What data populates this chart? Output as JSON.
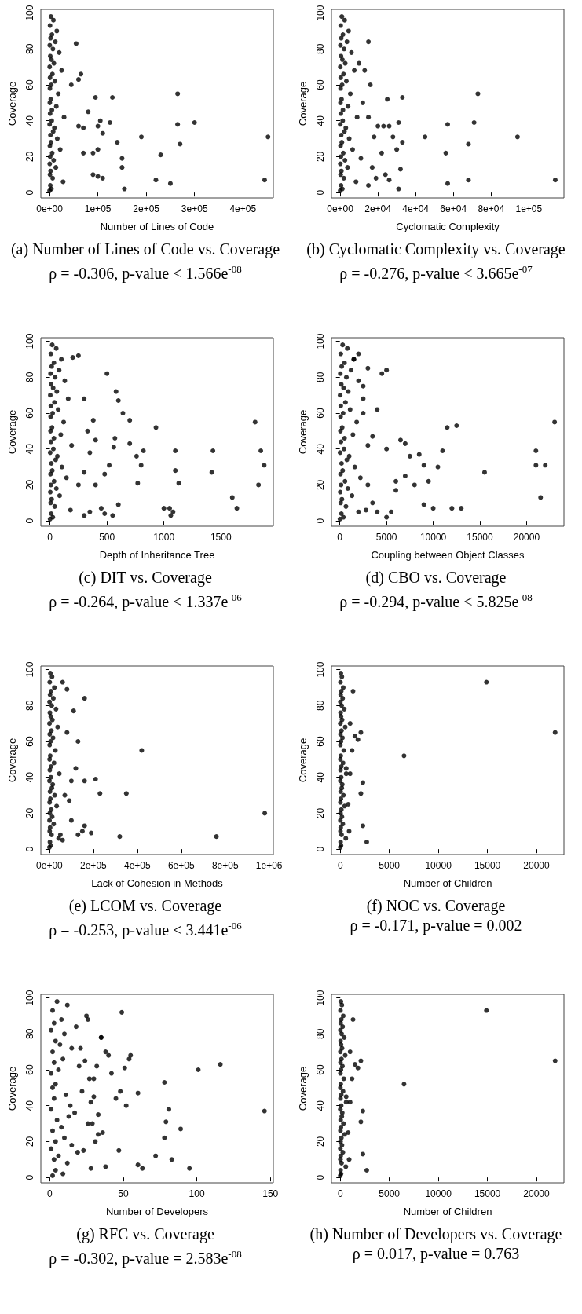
{
  "chart_data": [
    {
      "type": "scatter",
      "title": "(a) Number of Lines of Code vs. Coverage",
      "subtitle": "ρ = -0.306, p-value < 1.566e$^{-08}$",
      "xlabel": "Number of Lines of Code",
      "ylabel": "Coverage",
      "color": "#000000",
      "marker": "circle",
      "xlim": [
        -18000,
        463000
      ],
      "xticks": [
        {
          "value": 0,
          "label": "0e+00"
        },
        {
          "value": 100000,
          "label": "1e+05"
        },
        {
          "value": 200000,
          "label": "2e+05"
        },
        {
          "value": 300000,
          "label": "3e+05"
        },
        {
          "value": 400000,
          "label": "4e+05"
        }
      ],
      "ylim": [
        -3,
        102
      ],
      "yticks": [
        0,
        20,
        40,
        60,
        80,
        100
      ],
      "x": [
        3000,
        8000,
        1000,
        15000,
        5000,
        2000,
        12000,
        500,
        7000,
        20000,
        1500,
        4000,
        9000,
        300,
        25000,
        6000,
        1000,
        11000,
        3500,
        800,
        18000,
        2500,
        600,
        14000,
        5000,
        1200,
        30000,
        4500,
        200,
        10000,
        7500,
        1800,
        16000,
        3000,
        700,
        22000,
        5500,
        1300,
        8500,
        400,
        13000,
        2200,
        900,
        6500,
        28000,
        1600,
        3800,
        100,
        55000,
        60000,
        65000,
        45000,
        60000,
        70000,
        95000,
        105000,
        100000,
        110000,
        90000,
        100000,
        125000,
        130000,
        140000,
        150000,
        155000,
        150000,
        190000,
        220000,
        230000,
        250000,
        265000,
        265000,
        270000,
        300000,
        445000,
        452000,
        90000,
        100000,
        110000,
        70000,
        80000
      ],
      "values": [
        98,
        96,
        93,
        90,
        88,
        86,
        84,
        82,
        80,
        78,
        76,
        74,
        72,
        70,
        68,
        66,
        64,
        62,
        60,
        58,
        55,
        52,
        50,
        48,
        46,
        44,
        42,
        40,
        38,
        36,
        34,
        32,
        30,
        28,
        26,
        24,
        22,
        20,
        18,
        16,
        14,
        12,
        10,
        8,
        6,
        4,
        2,
        1,
        83,
        63,
        66,
        60,
        37,
        36,
        53,
        40,
        37,
        33,
        22,
        24,
        39,
        53,
        28,
        19,
        2,
        14,
        31,
        7,
        21,
        5,
        55,
        38,
        27,
        39,
        7,
        31,
        10,
        9,
        8,
        22,
        45
      ]
    },
    {
      "type": "scatter",
      "title": "(b) Cyclomatic Complexity vs. Coverage",
      "subtitle": "ρ = -0.276, p-value < 3.665e$^{-07}$",
      "xlabel": "Cyclomatic Complexity",
      "ylabel": "Coverage",
      "color": "#000000",
      "marker": "circle",
      "xlim": [
        -4600,
        118600
      ],
      "xticks": [
        {
          "value": 0,
          "label": "0e+00"
        },
        {
          "value": 20000,
          "label": "2e+04"
        },
        {
          "value": 40000,
          "label": "4e+04"
        },
        {
          "value": 60000,
          "label": "6e+04"
        },
        {
          "value": 80000,
          "label": "8e+04"
        },
        {
          "value": 100000,
          "label": "1e+05"
        }
      ],
      "ylim": [
        -3,
        102
      ],
      "yticks": [
        0,
        20,
        40,
        60,
        80,
        100
      ],
      "x": [
        900,
        2400,
        300,
        4500,
        1500,
        600,
        3600,
        150,
        2100,
        6000,
        450,
        1200,
        2700,
        90,
        7500,
        1800,
        300,
        3300,
        1050,
        240,
        5400,
        750,
        180,
        4200,
        1500,
        360,
        9000,
        1350,
        60,
        3000,
        2250,
        540,
        4800,
        900,
        210,
        6600,
        1650,
        390,
        2550,
        120,
        3900,
        660,
        270,
        1950,
        8400,
        480,
        1140,
        30,
        114000,
        94000,
        73000,
        71000,
        68000,
        57000,
        56000,
        57000,
        68000,
        45000,
        33000,
        33000,
        31000,
        32000,
        31000,
        30000,
        28000,
        26000,
        25000,
        23000,
        22000,
        20000,
        19000,
        24000,
        26000,
        15000,
        13000,
        10000,
        16000,
        12000,
        15000,
        11000,
        18000,
        15000,
        17000
      ],
      "values": [
        98,
        96,
        93,
        90,
        88,
        86,
        84,
        82,
        80,
        78,
        76,
        74,
        72,
        70,
        68,
        66,
        64,
        62,
        60,
        58,
        55,
        52,
        50,
        48,
        46,
        44,
        42,
        40,
        38,
        36,
        34,
        32,
        30,
        28,
        26,
        24,
        22,
        20,
        18,
        16,
        14,
        12,
        10,
        8,
        6,
        4,
        2,
        1,
        7,
        31,
        55,
        39,
        27,
        38,
        22,
        5,
        7,
        31,
        53,
        28,
        39,
        13,
        2,
        24,
        31,
        37,
        52,
        37,
        22,
        37,
        8,
        10,
        7,
        84,
        68,
        72,
        60,
        50,
        42,
        19,
        31,
        4,
        14
      ]
    },
    {
      "type": "scatter",
      "title": "(c) DIT vs. Coverage",
      "subtitle": "ρ = -0.264, p-value < 1.337e$^{-06}$",
      "xlabel": "Depth of Inheritance Tree",
      "ylabel": "Coverage",
      "color": "#000000",
      "marker": "circle",
      "xlim": [
        -80,
        1960
      ],
      "xticks": [
        0,
        500,
        1000,
        1500
      ],
      "ylim": [
        -3,
        102
      ],
      "yticks": [
        0,
        20,
        40,
        60,
        80,
        100
      ],
      "x": [
        20,
        55,
        8,
        100,
        35,
        15,
        80,
        5,
        45,
        130,
        10,
        28,
        60,
        3,
        160,
        40,
        8,
        72,
        24,
        6,
        120,
        18,
        5,
        95,
        35,
        9,
        190,
        30,
        2,
        65,
        50,
        12,
        105,
        20,
        5,
        145,
        36,
        9,
        56,
        3,
        85,
        15,
        6,
        42,
        180,
        11,
        25,
        1,
        1800,
        1850,
        1880,
        1830,
        1600,
        1640,
        1430,
        1420,
        1100,
        1100,
        1130,
        1000,
        1050,
        1080,
        1060,
        930,
        820,
        800,
        760,
        770,
        700,
        700,
        640,
        580,
        600,
        570,
        500,
        560,
        520,
        480,
        450,
        480,
        600,
        550,
        400,
        380,
        300,
        330,
        250,
        200,
        350,
        300,
        250,
        400,
        350,
        300
      ],
      "values": [
        98,
        96,
        93,
        90,
        88,
        86,
        84,
        82,
        80,
        78,
        76,
        74,
        72,
        70,
        68,
        66,
        64,
        62,
        60,
        58,
        55,
        52,
        50,
        48,
        46,
        44,
        42,
        40,
        38,
        36,
        34,
        32,
        30,
        28,
        26,
        24,
        22,
        20,
        18,
        16,
        14,
        12,
        10,
        8,
        6,
        4,
        2,
        1,
        55,
        39,
        31,
        20,
        13,
        7,
        39,
        27,
        39,
        28,
        21,
        7,
        7,
        5,
        3,
        52,
        39,
        31,
        36,
        21,
        56,
        43,
        60,
        72,
        67,
        46,
        82,
        41,
        31,
        26,
        7,
        4,
        9,
        3,
        45,
        56,
        68,
        50,
        92,
        91,
        38,
        27,
        20,
        20,
        5,
        3
      ]
    },
    {
      "type": "scatter",
      "title": "(d) CBO vs. Coverage",
      "subtitle": "ρ = -0.294, p-value < 5.825e$^{-08}$",
      "xlabel": "Coupling between Object Classes",
      "ylabel": "Coverage",
      "color": "#000000",
      "marker": "circle",
      "xlim": [
        -900,
        24000
      ],
      "xticks": [
        0,
        5000,
        10000,
        15000,
        20000
      ],
      "ylim": [
        -3,
        102
      ],
      "yticks": [
        0,
        20,
        40,
        60,
        80,
        100
      ],
      "x": [
        300,
        800,
        100,
        1500,
        500,
        200,
        1200,
        50,
        700,
        2000,
        150,
        400,
        900,
        30,
        2500,
        600,
        100,
        1100,
        350,
        80,
        1800,
        250,
        60,
        1400,
        500,
        120,
        3000,
        450,
        20,
        1000,
        750,
        180,
        1600,
        300,
        70,
        2200,
        550,
        130,
        850,
        40,
        1300,
        220,
        90,
        650,
        2800,
        160,
        380,
        10,
        23000,
        22000,
        21000,
        21500,
        21000,
        15500,
        13000,
        12500,
        12000,
        11500,
        11000,
        10000,
        10500,
        9000,
        9500,
        9000,
        8000,
        8500,
        7500,
        7000,
        6500,
        7000,
        6000,
        6000,
        5500,
        5000,
        4500,
        4000,
        5000,
        4000,
        5000,
        3500,
        3000,
        2500,
        3000,
        2000,
        3500,
        2500,
        2000,
        1500
      ],
      "values": [
        98,
        96,
        93,
        90,
        88,
        86,
        84,
        82,
        80,
        78,
        76,
        74,
        72,
        70,
        68,
        66,
        64,
        62,
        60,
        58,
        55,
        52,
        50,
        48,
        46,
        44,
        42,
        40,
        38,
        36,
        34,
        32,
        30,
        28,
        26,
        24,
        22,
        20,
        18,
        16,
        14,
        12,
        10,
        8,
        6,
        4,
        2,
        1,
        55,
        31,
        39,
        13,
        31,
        27,
        7,
        53,
        7,
        52,
        39,
        7,
        30,
        9,
        22,
        31,
        20,
        37,
        36,
        43,
        45,
        25,
        22,
        17,
        5,
        84,
        82,
        62,
        40,
        5,
        2,
        47,
        85,
        75,
        20,
        5,
        10,
        60,
        93,
        90
      ]
    },
    {
      "type": "scatter",
      "title": "(e) LCOM vs. Coverage",
      "subtitle": "ρ = -0.253, p-value < 3.441e$^{-06}$",
      "xlabel": "Lack of Cohesion in Methods",
      "ylabel": "Coverage",
      "color": "#000000",
      "marker": "circle",
      "xlim": [
        -39000,
        1019000
      ],
      "xticks": [
        {
          "value": 0,
          "label": "0e+00"
        },
        {
          "value": 200000,
          "label": "2e+05"
        },
        {
          "value": 400000,
          "label": "4e+05"
        },
        {
          "value": 600000,
          "label": "6e+05"
        },
        {
          "value": 800000,
          "label": "8e+05"
        },
        {
          "value": 1000000,
          "label": "1e+06"
        }
      ],
      "ylim": [
        -3,
        102
      ],
      "yticks": [
        0,
        20,
        40,
        60,
        80,
        100
      ],
      "x": [
        4500,
        12000,
        1500,
        22500,
        7500,
        3000,
        18000,
        750,
        10500,
        30000,
        2250,
        6000,
        13500,
        450,
        37500,
        9000,
        1500,
        16500,
        5250,
        1200,
        27000,
        3750,
        900,
        21000,
        7500,
        1800,
        45000,
        6750,
        300,
        15000,
        11250,
        2700,
        24000,
        4500,
        1050,
        33000,
        8250,
        1950,
        12750,
        600,
        19500,
        3300,
        1350,
        9750,
        42000,
        2400,
        5700,
        150,
        980000,
        760000,
        420000,
        350000,
        320000,
        230000,
        210000,
        190000,
        160000,
        160000,
        160000,
        130000,
        110000,
        120000,
        100000,
        90000,
        100000,
        80000,
        60000,
        80000,
        70000,
        60000,
        50000,
        130000,
        150000
      ],
      "values": [
        98,
        96,
        93,
        90,
        88,
        86,
        84,
        82,
        80,
        78,
        76,
        74,
        72,
        70,
        68,
        66,
        64,
        62,
        60,
        58,
        55,
        52,
        50,
        48,
        46,
        44,
        42,
        40,
        38,
        36,
        34,
        32,
        30,
        28,
        26,
        24,
        22,
        20,
        18,
        16,
        14,
        12,
        10,
        8,
        6,
        4,
        2,
        1,
        20,
        7,
        55,
        31,
        7,
        31,
        39,
        9,
        84,
        38,
        13,
        60,
        77,
        45,
        38,
        27,
        16,
        89,
        93,
        65,
        30,
        5,
        8,
        8,
        10
      ]
    },
    {
      "type": "scatter",
      "title": "(f) NOC vs. Coverage",
      "subtitle": "ρ = -0.171, p-value = 0.002",
      "xlabel": "Number of Children",
      "ylabel": "Coverage",
      "color": "#000000",
      "marker": "circle",
      "xlim": [
        -900,
        22800
      ],
      "xticks": [
        0,
        5000,
        10000,
        15000,
        20000
      ],
      "ylim": [
        -3,
        102
      ],
      "yticks": [
        0,
        20,
        40,
        60,
        80,
        100
      ],
      "x": [
        60,
        160,
        20,
        300,
        100,
        40,
        240,
        10,
        140,
        400,
        30,
        80,
        180,
        6,
        500,
        120,
        20,
        220,
        70,
        16,
        360,
        50,
        12,
        280,
        100,
        24,
        600,
        90,
        4,
        200,
        150,
        36,
        320,
        60,
        14,
        440,
        110,
        26,
        170,
        8,
        260,
        44,
        18,
        130,
        560,
        32,
        76,
        2,
        21900,
        14900,
        6500,
        2700,
        2300,
        2300,
        2100,
        1800,
        1500,
        2100,
        1300,
        1200,
        1000,
        900,
        800,
        600,
        1000
      ],
      "values": [
        98,
        96,
        93,
        90,
        88,
        86,
        84,
        82,
        80,
        78,
        76,
        74,
        72,
        70,
        68,
        66,
        64,
        62,
        60,
        58,
        55,
        52,
        50,
        48,
        46,
        44,
        42,
        40,
        38,
        36,
        34,
        32,
        30,
        28,
        26,
        24,
        22,
        20,
        18,
        16,
        14,
        12,
        10,
        8,
        6,
        4,
        2,
        1,
        65,
        93,
        52,
        4,
        13,
        37,
        31,
        61,
        63,
        65,
        88,
        55,
        42,
        10,
        25,
        45,
        70
      ]
    },
    {
      "type": "scatter",
      "title": "(g) RFC vs. Coverage",
      "subtitle": "ρ = -0.302, p-value = 2.583e$^{-08}$",
      "xlabel": "Number of Developers",
      "ylabel": "Coverage",
      "color": "#000000",
      "marker": "circle",
      "xlim": [
        -6,
        152
      ],
      "xticks": [
        0,
        50,
        100,
        150
      ],
      "ylim": [
        -3,
        102
      ],
      "yticks": [
        0,
        20,
        40,
        60,
        80,
        100
      ],
      "x": [
        5,
        12,
        2,
        25,
        8,
        3,
        18,
        1,
        10,
        35,
        4,
        7,
        15,
        2,
        40,
        9,
        3,
        20,
        6,
        1,
        30,
        4,
        2,
        22,
        11,
        3,
        28,
        14,
        1,
        17,
        13,
        5,
        26,
        8,
        2,
        33,
        10,
        4,
        15,
        1,
        19,
        6,
        3,
        12,
        38,
        4,
        9,
        2,
        21,
        24,
        27,
        30,
        33,
        36,
        23,
        28,
        32,
        35,
        26,
        38,
        42,
        29,
        31,
        146,
        116,
        101,
        89,
        95,
        78,
        81,
        79,
        78,
        83,
        72,
        60,
        55,
        54,
        49,
        60,
        63,
        47,
        48,
        52,
        45,
        51
      ],
      "values": [
        98,
        96,
        93,
        90,
        88,
        86,
        84,
        82,
        80,
        78,
        76,
        74,
        72,
        70,
        68,
        66,
        64,
        62,
        60,
        58,
        55,
        52,
        50,
        48,
        46,
        44,
        42,
        40,
        38,
        36,
        34,
        32,
        30,
        28,
        26,
        24,
        22,
        20,
        18,
        16,
        14,
        12,
        10,
        8,
        6,
        4,
        2,
        1,
        72,
        65,
        55,
        45,
        35,
        25,
        15,
        5,
        62,
        78,
        88,
        70,
        58,
        30,
        20,
        37,
        63,
        60,
        27,
        5,
        53,
        38,
        31,
        22,
        10,
        12,
        47,
        68,
        66,
        92,
        7,
        5,
        15,
        48,
        40,
        44,
        61
      ]
    },
    {
      "type": "scatter",
      "title": "(h) Number of Developers vs. Coverage",
      "subtitle": "ρ = 0.017, p-value = 0.763",
      "xlabel": "Number of Children",
      "ylabel": "Coverage",
      "color": "#000000",
      "marker": "circle",
      "xlim": [
        -900,
        22800
      ],
      "xticks": [
        0,
        5000,
        10000,
        15000,
        20000
      ],
      "ylim": [
        -3,
        102
      ],
      "yticks": [
        0,
        20,
        40,
        60,
        80,
        100
      ],
      "x": [
        60,
        160,
        20,
        300,
        100,
        40,
        240,
        10,
        140,
        400,
        30,
        80,
        180,
        6,
        500,
        120,
        20,
        220,
        70,
        16,
        360,
        50,
        12,
        280,
        100,
        24,
        600,
        90,
        4,
        200,
        150,
        36,
        320,
        60,
        14,
        440,
        110,
        26,
        170,
        8,
        260,
        44,
        18,
        130,
        560,
        32,
        76,
        2,
        21900,
        14900,
        6500,
        2700,
        2300,
        2300,
        2100,
        1800,
        1500,
        2100,
        1300,
        1200,
        1000,
        900,
        800,
        600,
        1000
      ],
      "values": [
        98,
        96,
        93,
        90,
        88,
        86,
        84,
        82,
        80,
        78,
        76,
        74,
        72,
        70,
        68,
        66,
        64,
        62,
        60,
        58,
        55,
        52,
        50,
        48,
        46,
        44,
        42,
        40,
        38,
        36,
        34,
        32,
        30,
        28,
        26,
        24,
        22,
        20,
        18,
        16,
        14,
        12,
        10,
        8,
        6,
        4,
        2,
        1,
        65,
        93,
        52,
        4,
        13,
        37,
        31,
        61,
        63,
        65,
        88,
        55,
        42,
        10,
        25,
        45,
        70
      ]
    }
  ]
}
